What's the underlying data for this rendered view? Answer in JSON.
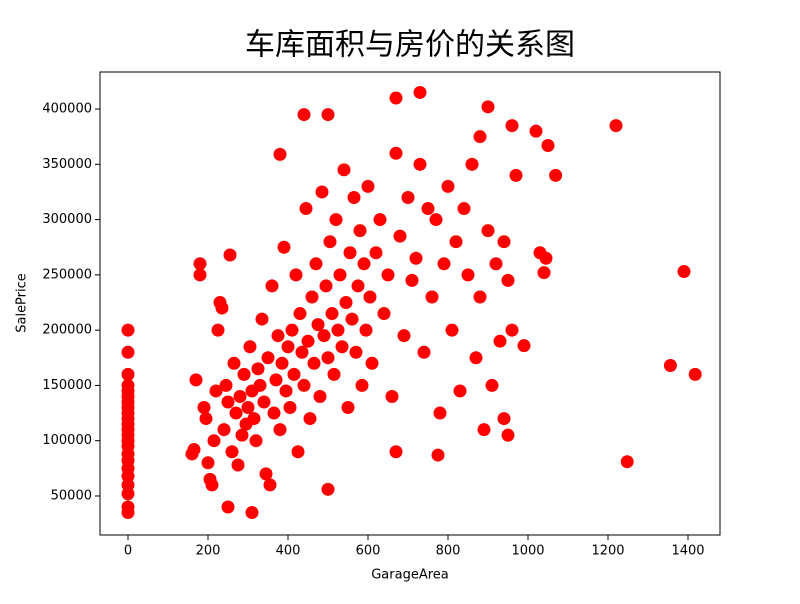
{
  "chart_data": {
    "type": "scatter",
    "title": "车库面积与房价的关系图",
    "x_label": "GarageArea",
    "y_label": "SalePrice",
    "color": "#ff0000",
    "xlim": [
      -70,
      1480
    ],
    "ylim": [
      14700,
      433500
    ],
    "xticks": [
      0,
      200,
      400,
      600,
      800,
      1000,
      1200,
      1400
    ],
    "yticks": [
      50000,
      100000,
      150000,
      200000,
      250000,
      300000,
      350000,
      400000
    ],
    "series": [
      {
        "name": "SalePrice",
        "color": "#ff0000",
        "x": [
          0,
          0,
          0,
          0,
          0,
          0,
          0,
          0,
          0,
          0,
          0,
          0,
          0,
          0,
          0,
          0,
          0,
          0,
          0,
          0,
          0,
          0,
          0,
          1220,
          1390,
          1356,
          1418,
          1248,
          1069,
          1050,
          1020,
          1040,
          1045,
          1030,
          970,
          960,
          990,
          960,
          900,
          880,
          730,
          670,
          500,
          440,
          380,
          310,
          250,
          775,
          950,
          940,
          670,
          160,
          165,
          170,
          180,
          180,
          190,
          195,
          200,
          205,
          210,
          215,
          220,
          225,
          230,
          235,
          240,
          245,
          250,
          255,
          260,
          265,
          270,
          275,
          280,
          285,
          290,
          295,
          300,
          305,
          310,
          315,
          320,
          325,
          330,
          335,
          340,
          345,
          350,
          355,
          360,
          365,
          370,
          375,
          380,
          385,
          390,
          395,
          400,
          405,
          410,
          415,
          420,
          425,
          430,
          435,
          440,
          445,
          450,
          455,
          460,
          465,
          470,
          475,
          480,
          485,
          490,
          495,
          500,
          500,
          505,
          510,
          515,
          520,
          525,
          530,
          535,
          540,
          545,
          550,
          555,
          560,
          565,
          570,
          575,
          580,
          585,
          590,
          595,
          600,
          605,
          610,
          620,
          630,
          640,
          650,
          660,
          670,
          680,
          690,
          700,
          710,
          720,
          730,
          740,
          750,
          760,
          770,
          780,
          790,
          800,
          810,
          820,
          830,
          840,
          850,
          860,
          870,
          880,
          890,
          900,
          910,
          920,
          930,
          940,
          950
        ],
        "values": [
          35000,
          40000,
          52000,
          60000,
          68000,
          75000,
          82000,
          88000,
          95000,
          100000,
          105000,
          110000,
          115000,
          120000,
          125000,
          130000,
          135000,
          140000,
          145000,
          150000,
          160000,
          180000,
          200000,
          385000,
          253000,
          168000,
          160000,
          81000,
          340000,
          367000,
          380000,
          252000,
          265000,
          270000,
          340000,
          385000,
          186000,
          200000,
          402000,
          375000,
          415000,
          410000,
          395000,
          395000,
          359000,
          35000,
          40000,
          87000,
          105000,
          120000,
          90000,
          88000,
          92000,
          155000,
          250000,
          260000,
          130000,
          120000,
          80000,
          65000,
          60000,
          100000,
          145000,
          200000,
          225000,
          220000,
          110000,
          150000,
          135000,
          268000,
          90000,
          170000,
          125000,
          78000,
          140000,
          105000,
          160000,
          115000,
          130000,
          185000,
          145000,
          120000,
          100000,
          165000,
          150000,
          210000,
          135000,
          70000,
          175000,
          60000,
          240000,
          125000,
          155000,
          195000,
          110000,
          170000,
          275000,
          145000,
          185000,
          130000,
          200000,
          160000,
          250000,
          90000,
          215000,
          180000,
          150000,
          310000,
          190000,
          120000,
          230000,
          170000,
          260000,
          205000,
          140000,
          325000,
          195000,
          240000,
          175000,
          56000,
          280000,
          215000,
          160000,
          300000,
          200000,
          250000,
          185000,
          345000,
          225000,
          130000,
          270000,
          210000,
          320000,
          180000,
          240000,
          290000,
          150000,
          260000,
          200000,
          330000,
          230000,
          170000,
          270000,
          300000,
          215000,
          250000,
          140000,
          360000,
          285000,
          195000,
          320000,
          245000,
          265000,
          350000,
          180000,
          310000,
          230000,
          300000,
          125000,
          260000,
          330000,
          200000,
          280000,
          145000,
          310000,
          250000,
          350000,
          175000,
          230000,
          110000,
          290000,
          150000,
          260000,
          190000,
          280000,
          245000
        ]
      }
    ]
  }
}
